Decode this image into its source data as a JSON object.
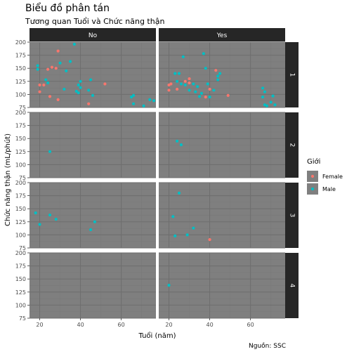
{
  "chart_data": {
    "type": "scatter",
    "title": "Biểu đồ phân tán",
    "subtitle": "Tương quan Tuổi và Chức năng thận",
    "caption": "Nguồn: SSC",
    "xlabel": "Tuổi (năm)",
    "ylabel": "Chức năng thận (mL/phút)",
    "xlim": [
      15,
      77
    ],
    "ylim": [
      75,
      200
    ],
    "x_ticks": [
      20,
      40,
      60
    ],
    "y_ticks": [
      75,
      100,
      125,
      150,
      175,
      200
    ],
    "facet_cols": [
      "No",
      "Yes"
    ],
    "facet_rows": [
      "1",
      "2",
      "3",
      "4"
    ],
    "legend": {
      "title": "Giới",
      "position": "right",
      "entries": [
        {
          "label": "Female",
          "color": "#F8766D"
        },
        {
          "label": "Male",
          "color": "#00BFC4"
        }
      ]
    },
    "colors": {
      "panel_bg": "#7f7f7f",
      "grid_major": "#6e6e6e",
      "grid_minor": "#797979",
      "strip_bg": "#262626",
      "strip_text": "#ffffff",
      "female": "#F8766D",
      "male": "#00BFC4"
    },
    "series": [
      {
        "name": "Female",
        "points": [
          {
            "col": "No",
            "row": "1",
            "x": 20,
            "y": 118
          },
          {
            "col": "No",
            "row": "1",
            "x": 20,
            "y": 105
          },
          {
            "col": "No",
            "row": "1",
            "x": 22,
            "y": 118
          },
          {
            "col": "No",
            "row": "1",
            "x": 24,
            "y": 148
          },
          {
            "col": "No",
            "row": "1",
            "x": 25,
            "y": 96
          },
          {
            "col": "No",
            "row": "1",
            "x": 26,
            "y": 152
          },
          {
            "col": "No",
            "row": "1",
            "x": 28,
            "y": 150
          },
          {
            "col": "No",
            "row": "1",
            "x": 29,
            "y": 183
          },
          {
            "col": "No",
            "row": "1",
            "x": 29,
            "y": 90
          },
          {
            "col": "No",
            "row": "1",
            "x": 44,
            "y": 82
          },
          {
            "col": "No",
            "row": "1",
            "x": 52,
            "y": 120
          },
          {
            "col": "Yes",
            "row": "1",
            "x": 20,
            "y": 118
          },
          {
            "col": "Yes",
            "row": "1",
            "x": 20,
            "y": 108
          },
          {
            "col": "Yes",
            "row": "1",
            "x": 21,
            "y": 120
          },
          {
            "col": "Yes",
            "row": "1",
            "x": 24,
            "y": 110
          },
          {
            "col": "Yes",
            "row": "1",
            "x": 28,
            "y": 125
          },
          {
            "col": "Yes",
            "row": "1",
            "x": 30,
            "y": 130
          },
          {
            "col": "Yes",
            "row": "1",
            "x": 30,
            "y": 122
          },
          {
            "col": "Yes",
            "row": "1",
            "x": 38,
            "y": 95
          },
          {
            "col": "Yes",
            "row": "1",
            "x": 40,
            "y": 110
          },
          {
            "col": "Yes",
            "row": "1",
            "x": 43,
            "y": 146
          },
          {
            "col": "Yes",
            "row": "1",
            "x": 49,
            "y": 98
          },
          {
            "col": "Yes",
            "row": "3",
            "x": 40,
            "y": 91
          }
        ]
      },
      {
        "name": "Male",
        "points": [
          {
            "col": "No",
            "row": "1",
            "x": 19,
            "y": 155
          },
          {
            "col": "No",
            "row": "1",
            "x": 19,
            "y": 148
          },
          {
            "col": "No",
            "row": "1",
            "x": 23,
            "y": 128
          },
          {
            "col": "No",
            "row": "1",
            "x": 24,
            "y": 122
          },
          {
            "col": "No",
            "row": "1",
            "x": 30,
            "y": 160
          },
          {
            "col": "No",
            "row": "1",
            "x": 32,
            "y": 110
          },
          {
            "col": "No",
            "row": "1",
            "x": 33,
            "y": 145
          },
          {
            "col": "No",
            "row": "1",
            "x": 35,
            "y": 163
          },
          {
            "col": "No",
            "row": "1",
            "x": 37,
            "y": 196
          },
          {
            "col": "No",
            "row": "1",
            "x": 38,
            "y": 106
          },
          {
            "col": "No",
            "row": "1",
            "x": 39,
            "y": 103
          },
          {
            "col": "No",
            "row": "1",
            "x": 39,
            "y": 118
          },
          {
            "col": "No",
            "row": "1",
            "x": 40,
            "y": 113
          },
          {
            "col": "No",
            "row": "1",
            "x": 40,
            "y": 125
          },
          {
            "col": "No",
            "row": "1",
            "x": 44,
            "y": 108
          },
          {
            "col": "No",
            "row": "1",
            "x": 45,
            "y": 128
          },
          {
            "col": "No",
            "row": "1",
            "x": 46,
            "y": 98
          },
          {
            "col": "No",
            "row": "1",
            "x": 65,
            "y": 95
          },
          {
            "col": "No",
            "row": "1",
            "x": 66,
            "y": 98
          },
          {
            "col": "No",
            "row": "1",
            "x": 66,
            "y": 82
          },
          {
            "col": "No",
            "row": "1",
            "x": 71,
            "y": 78
          },
          {
            "col": "No",
            "row": "1",
            "x": 74,
            "y": 90
          },
          {
            "col": "No",
            "row": "1",
            "x": 76,
            "y": 88
          },
          {
            "col": "Yes",
            "row": "1",
            "x": 23,
            "y": 140
          },
          {
            "col": "Yes",
            "row": "1",
            "x": 24,
            "y": 125
          },
          {
            "col": "Yes",
            "row": "1",
            "x": 25,
            "y": 140
          },
          {
            "col": "Yes",
            "row": "1",
            "x": 26,
            "y": 120
          },
          {
            "col": "Yes",
            "row": "1",
            "x": 27,
            "y": 172
          },
          {
            "col": "Yes",
            "row": "1",
            "x": 28,
            "y": 118
          },
          {
            "col": "Yes",
            "row": "1",
            "x": 30,
            "y": 108
          },
          {
            "col": "Yes",
            "row": "1",
            "x": 32,
            "y": 120
          },
          {
            "col": "Yes",
            "row": "1",
            "x": 33,
            "y": 105
          },
          {
            "col": "Yes",
            "row": "1",
            "x": 34,
            "y": 115
          },
          {
            "col": "Yes",
            "row": "1",
            "x": 35,
            "y": 96
          },
          {
            "col": "Yes",
            "row": "1",
            "x": 36,
            "y": 102
          },
          {
            "col": "Yes",
            "row": "1",
            "x": 37,
            "y": 178
          },
          {
            "col": "Yes",
            "row": "1",
            "x": 38,
            "y": 150
          },
          {
            "col": "Yes",
            "row": "1",
            "x": 39,
            "y": 120
          },
          {
            "col": "Yes",
            "row": "1",
            "x": 40,
            "y": 95
          },
          {
            "col": "Yes",
            "row": "1",
            "x": 42,
            "y": 108
          },
          {
            "col": "Yes",
            "row": "1",
            "x": 44,
            "y": 135
          },
          {
            "col": "Yes",
            "row": "1",
            "x": 44,
            "y": 128
          },
          {
            "col": "Yes",
            "row": "1",
            "x": 45,
            "y": 140
          },
          {
            "col": "Yes",
            "row": "1",
            "x": 66,
            "y": 112
          },
          {
            "col": "Yes",
            "row": "1",
            "x": 66,
            "y": 95
          },
          {
            "col": "Yes",
            "row": "1",
            "x": 67,
            "y": 105
          },
          {
            "col": "Yes",
            "row": "1",
            "x": 67,
            "y": 80
          },
          {
            "col": "Yes",
            "row": "1",
            "x": 68,
            "y": 78
          },
          {
            "col": "Yes",
            "row": "1",
            "x": 70,
            "y": 85
          },
          {
            "col": "Yes",
            "row": "1",
            "x": 71,
            "y": 97
          },
          {
            "col": "Yes",
            "row": "1",
            "x": 72,
            "y": 80
          },
          {
            "col": "No",
            "row": "2",
            "x": 25,
            "y": 125
          },
          {
            "col": "Yes",
            "row": "2",
            "x": 24,
            "y": 145
          },
          {
            "col": "Yes",
            "row": "2",
            "x": 26,
            "y": 138
          },
          {
            "col": "No",
            "row": "3",
            "x": 18,
            "y": 142
          },
          {
            "col": "No",
            "row": "3",
            "x": 20,
            "y": 120
          },
          {
            "col": "No",
            "row": "3",
            "x": 25,
            "y": 138
          },
          {
            "col": "No",
            "row": "3",
            "x": 28,
            "y": 130
          },
          {
            "col": "No",
            "row": "3",
            "x": 45,
            "y": 110
          },
          {
            "col": "No",
            "row": "3",
            "x": 47,
            "y": 125
          },
          {
            "col": "Yes",
            "row": "3",
            "x": 22,
            "y": 135
          },
          {
            "col": "Yes",
            "row": "3",
            "x": 23,
            "y": 98
          },
          {
            "col": "Yes",
            "row": "3",
            "x": 25,
            "y": 180
          },
          {
            "col": "Yes",
            "row": "3",
            "x": 29,
            "y": 100
          },
          {
            "col": "Yes",
            "row": "3",
            "x": 32,
            "y": 113
          },
          {
            "col": "Yes",
            "row": "4",
            "x": 20,
            "y": 138
          }
        ]
      }
    ]
  }
}
